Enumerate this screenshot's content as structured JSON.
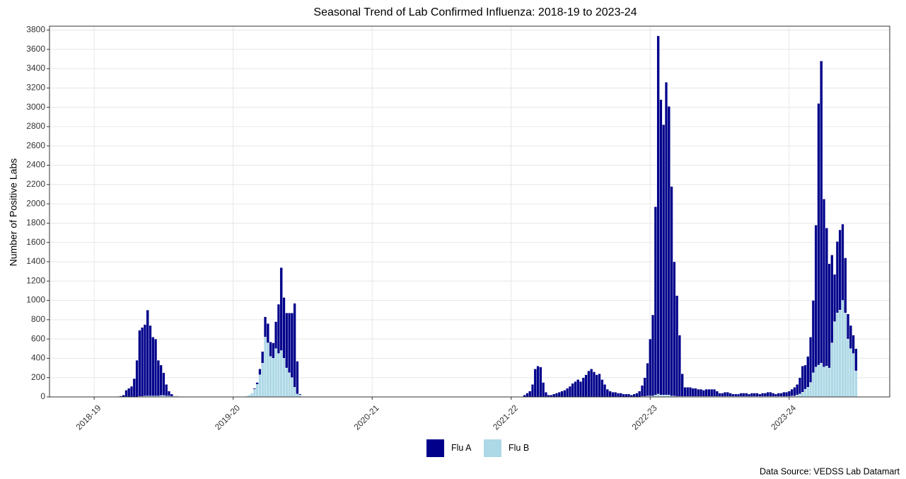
{
  "chart_data": {
    "type": "bar",
    "stacked": true,
    "title": "Seasonal Trend of Lab Confirmed Influenza: 2018-19 to 2023-24",
    "y_label": "Number of Positive Labs",
    "caption": "Data Source: VEDSS Lab Datamart",
    "grid": true,
    "legend": "bottom",
    "xlim": [
      -16.7,
      297.6
    ],
    "ylim": [
      0,
      3840
    ],
    "xticks": [
      {
        "value": 0,
        "label": "2018-19"
      },
      {
        "value": 52,
        "label": "2019-20"
      },
      {
        "value": 104,
        "label": "2020-21"
      },
      {
        "value": 156,
        "label": "2021-22"
      },
      {
        "value": 208,
        "label": "2022-23"
      },
      {
        "value": 260,
        "label": "2023-24"
      }
    ],
    "yticks": [
      0,
      200,
      400,
      600,
      800,
      1000,
      1200,
      1400,
      1600,
      1800,
      2000,
      2200,
      2400,
      2600,
      2800,
      3000,
      3200,
      3400,
      3600,
      3800
    ],
    "x": [
      9,
      10,
      11,
      12,
      13,
      14,
      15,
      16,
      17,
      18,
      19,
      20,
      21,
      22,
      23,
      24,
      25,
      26,
      27,
      28,
      29,
      30,
      31,
      32,
      56,
      57,
      58,
      59,
      60,
      61,
      62,
      63,
      64,
      65,
      66,
      67,
      68,
      69,
      70,
      71,
      72,
      73,
      74,
      75,
      76,
      77,
      161,
      162,
      163,
      164,
      165,
      166,
      167,
      168,
      169,
      170,
      171,
      172,
      173,
      174,
      175,
      176,
      177,
      178,
      179,
      180,
      181,
      182,
      183,
      184,
      185,
      186,
      187,
      188,
      189,
      190,
      191,
      192,
      193,
      194,
      195,
      196,
      197,
      198,
      199,
      200,
      201,
      202,
      203,
      204,
      205,
      206,
      207,
      208,
      209,
      210,
      211,
      212,
      213,
      214,
      215,
      216,
      217,
      218,
      219,
      220,
      221,
      222,
      223,
      224,
      225,
      226,
      227,
      228,
      229,
      230,
      231,
      232,
      233,
      234,
      235,
      236,
      237,
      238,
      239,
      240,
      241,
      242,
      243,
      244,
      245,
      246,
      247,
      248,
      249,
      250,
      251,
      252,
      253,
      254,
      255,
      256,
      257,
      258,
      259,
      260,
      261,
      262,
      263,
      264,
      265,
      266,
      267,
      268,
      269,
      270,
      271,
      272,
      273,
      274,
      275,
      276,
      277,
      278,
      279,
      280,
      281,
      282,
      283,
      284,
      285
    ],
    "series": [
      {
        "name": "Flu A",
        "color": "#00008b",
        "values": [
          5,
          10,
          20,
          70,
          90,
          110,
          190,
          380,
          685,
          715,
          740,
          890,
          730,
          610,
          590,
          370,
          315,
          235,
          120,
          50,
          25,
          5,
          5,
          5,
          0,
          0,
          0,
          0,
          10,
          20,
          60,
          120,
          210,
          200,
          150,
          160,
          280,
          510,
          860,
          630,
          570,
          620,
          670,
          870,
          340,
          10,
          20,
          40,
          60,
          130,
          290,
          320,
          310,
          150,
          50,
          20,
          20,
          30,
          40,
          50,
          60,
          70,
          90,
          110,
          140,
          160,
          180,
          160,
          200,
          230,
          270,
          290,
          260,
          230,
          240,
          180,
          130,
          80,
          60,
          50,
          50,
          40,
          40,
          30,
          30,
          30,
          20,
          30,
          40,
          60,
          115,
          195,
          340,
          590,
          840,
          1950,
          3710,
          3060,
          2800,
          3240,
          2990,
          2170,
          1390,
          1045,
          635,
          235,
          95,
          95,
          95,
          85,
          85,
          75,
          75,
          65,
          75,
          75,
          75,
          75,
          55,
          35,
          35,
          45,
          45,
          35,
          25,
          25,
          25,
          35,
          35,
          35,
          25,
          35,
          35,
          35,
          25,
          35,
          35,
          45,
          45,
          35,
          25,
          35,
          35,
          45,
          45,
          55,
          70,
          90,
          110,
          170,
          270,
          250,
          320,
          470,
          750,
          1470,
          2710,
          3130,
          1740,
          1430,
          1080,
          910,
          490,
          740,
          830,
          790,
          570,
          260,
          240,
          190,
          230
        ]
      },
      {
        "name": "Flu B",
        "color": "#add8e6",
        "values": [
          0,
          0,
          0,
          0,
          0,
          0,
          0,
          0,
          5,
          5,
          10,
          10,
          10,
          10,
          10,
          10,
          15,
          15,
          10,
          10,
          5,
          5,
          5,
          0,
          5,
          10,
          20,
          40,
          80,
          130,
          230,
          350,
          620,
          560,
          420,
          400,
          500,
          450,
          480,
          400,
          300,
          250,
          200,
          100,
          30,
          20,
          0,
          0,
          0,
          0,
          0,
          0,
          0,
          0,
          0,
          0,
          0,
          0,
          0,
          0,
          0,
          0,
          0,
          0,
          0,
          0,
          0,
          0,
          0,
          0,
          0,
          0,
          0,
          0,
          0,
          0,
          0,
          0,
          0,
          0,
          0,
          0,
          0,
          0,
          0,
          0,
          0,
          0,
          0,
          0,
          5,
          5,
          10,
          10,
          10,
          20,
          30,
          20,
          20,
          20,
          20,
          10,
          10,
          5,
          5,
          5,
          5,
          5,
          5,
          5,
          5,
          5,
          5,
          5,
          5,
          5,
          5,
          5,
          5,
          5,
          5,
          5,
          5,
          5,
          5,
          5,
          5,
          5,
          5,
          5,
          5,
          5,
          5,
          5,
          5,
          5,
          5,
          5,
          5,
          5,
          5,
          5,
          5,
          5,
          5,
          5,
          10,
          10,
          20,
          30,
          50,
          80,
          100,
          150,
          250,
          310,
          330,
          350,
          310,
          320,
          300,
          560,
          780,
          870,
          900,
          1000,
          870,
          600,
          500,
          450,
          270
        ]
      }
    ]
  }
}
